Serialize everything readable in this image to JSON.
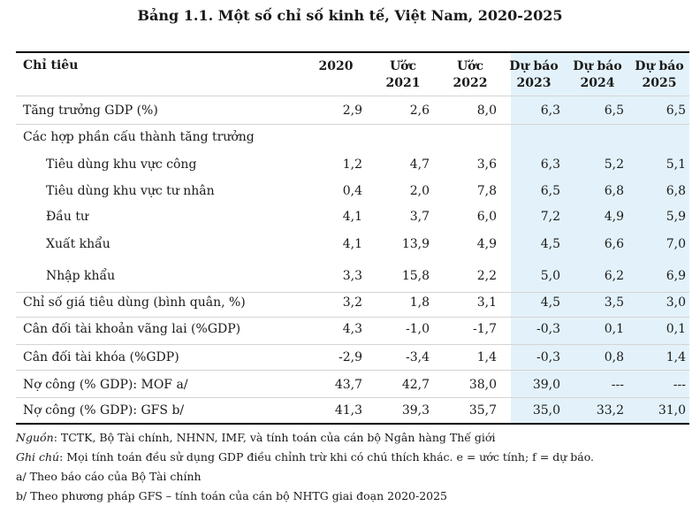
{
  "title": "Bảng 1.1. Một số chỉ số kinh tế, Việt Nam, 2020-2025",
  "header": {
    "label": "Chỉ tiêu",
    "columns": [
      [
        "2020"
      ],
      [
        "Ước",
        "2021"
      ],
      [
        "Ước",
        "2022"
      ],
      [
        "Dự báo",
        "2023"
      ],
      [
        "Dự báo",
        "2024"
      ],
      [
        "Dự báo",
        "2025"
      ]
    ]
  },
  "rows": [
    {
      "label": "Tăng trưởng GDP (%)",
      "values": [
        "2,9",
        "2,6",
        "8,0",
        "6,3",
        "6,5",
        "6,5"
      ]
    },
    {
      "label": "Các hợp phần cấu thành tăng trưởng",
      "values": [
        "",
        "",
        "",
        "",
        "",
        ""
      ]
    },
    {
      "label": "Tiêu dùng khu vực công",
      "values": [
        "1,2",
        "4,7",
        "3,6",
        "6,3",
        "5,2",
        "5,1"
      ]
    },
    {
      "label": "Tiêu dùng khu vực tư nhân",
      "values": [
        "0,4",
        "2,0",
        "7,8",
        "6,5",
        "6,8",
        "6,8"
      ]
    },
    {
      "label": "Đầu tư",
      "values": [
        "4,1",
        "3,7",
        "6,0",
        "7,2",
        "4,9",
        "5,9"
      ]
    },
    {
      "label": "Xuất khẩu",
      "values": [
        "4,1",
        "13,9",
        "4,9",
        "4,5",
        "6,6",
        "7,0"
      ]
    },
    {
      "label": "Nhập khẩu",
      "values": [
        "3,3",
        "15,8",
        "2,2",
        "5,0",
        "6,2",
        "6,9"
      ]
    },
    {
      "label": "Chỉ số giá tiêu dùng (bình quân, %)",
      "values": [
        "3,2",
        "1,8",
        "3,1",
        "4,5",
        "3,5",
        "3,0"
      ]
    },
    {
      "label": "Cân đối tài khoản vãng lai (%GDP)",
      "values": [
        "4,3",
        "-1,0",
        "-1,7",
        "-0,3",
        "0,1",
        "0,1"
      ]
    },
    {
      "label": "Cân đối tài khóa (%GDP)",
      "values": [
        "-2,9",
        "-3,4",
        "1,4",
        "-0,3",
        "0,8",
        "1,4"
      ]
    },
    {
      "label": "Nợ công (% GDP): MOF a/",
      "values": [
        "43,7",
        "42,7",
        "38,0",
        "39,0",
        "---",
        "---"
      ]
    },
    {
      "label": "Nợ công (% GDP): GFS b/",
      "values": [
        "41,3",
        "39,3",
        "35,7",
        "35,0",
        "33,2",
        "31,0"
      ]
    }
  ],
  "notes": {
    "source_label": "Nguồn",
    "source_text": ": TCTK, Bộ Tài chính, NHNN, IMF, và tính toán của cán bộ Ngân hàng Thế giới",
    "remark_label": "Ghi chú",
    "remark_text": ": Mọi tính toán đều sử dụng GDP điều chỉnh trừ khi có chú thích khác. e = ước tính; f = dự báo.",
    "note_a": "a/ Theo báo cáo của Bộ Tài chính",
    "note_b": "b/ Theo phương pháp GFS – tính toán của cán bộ NHTG giai đoạn 2020-2025"
  },
  "colors": {
    "forecast_bg": "#e3f2fa",
    "rule": "#000000",
    "grid": "#d4d4d4"
  }
}
